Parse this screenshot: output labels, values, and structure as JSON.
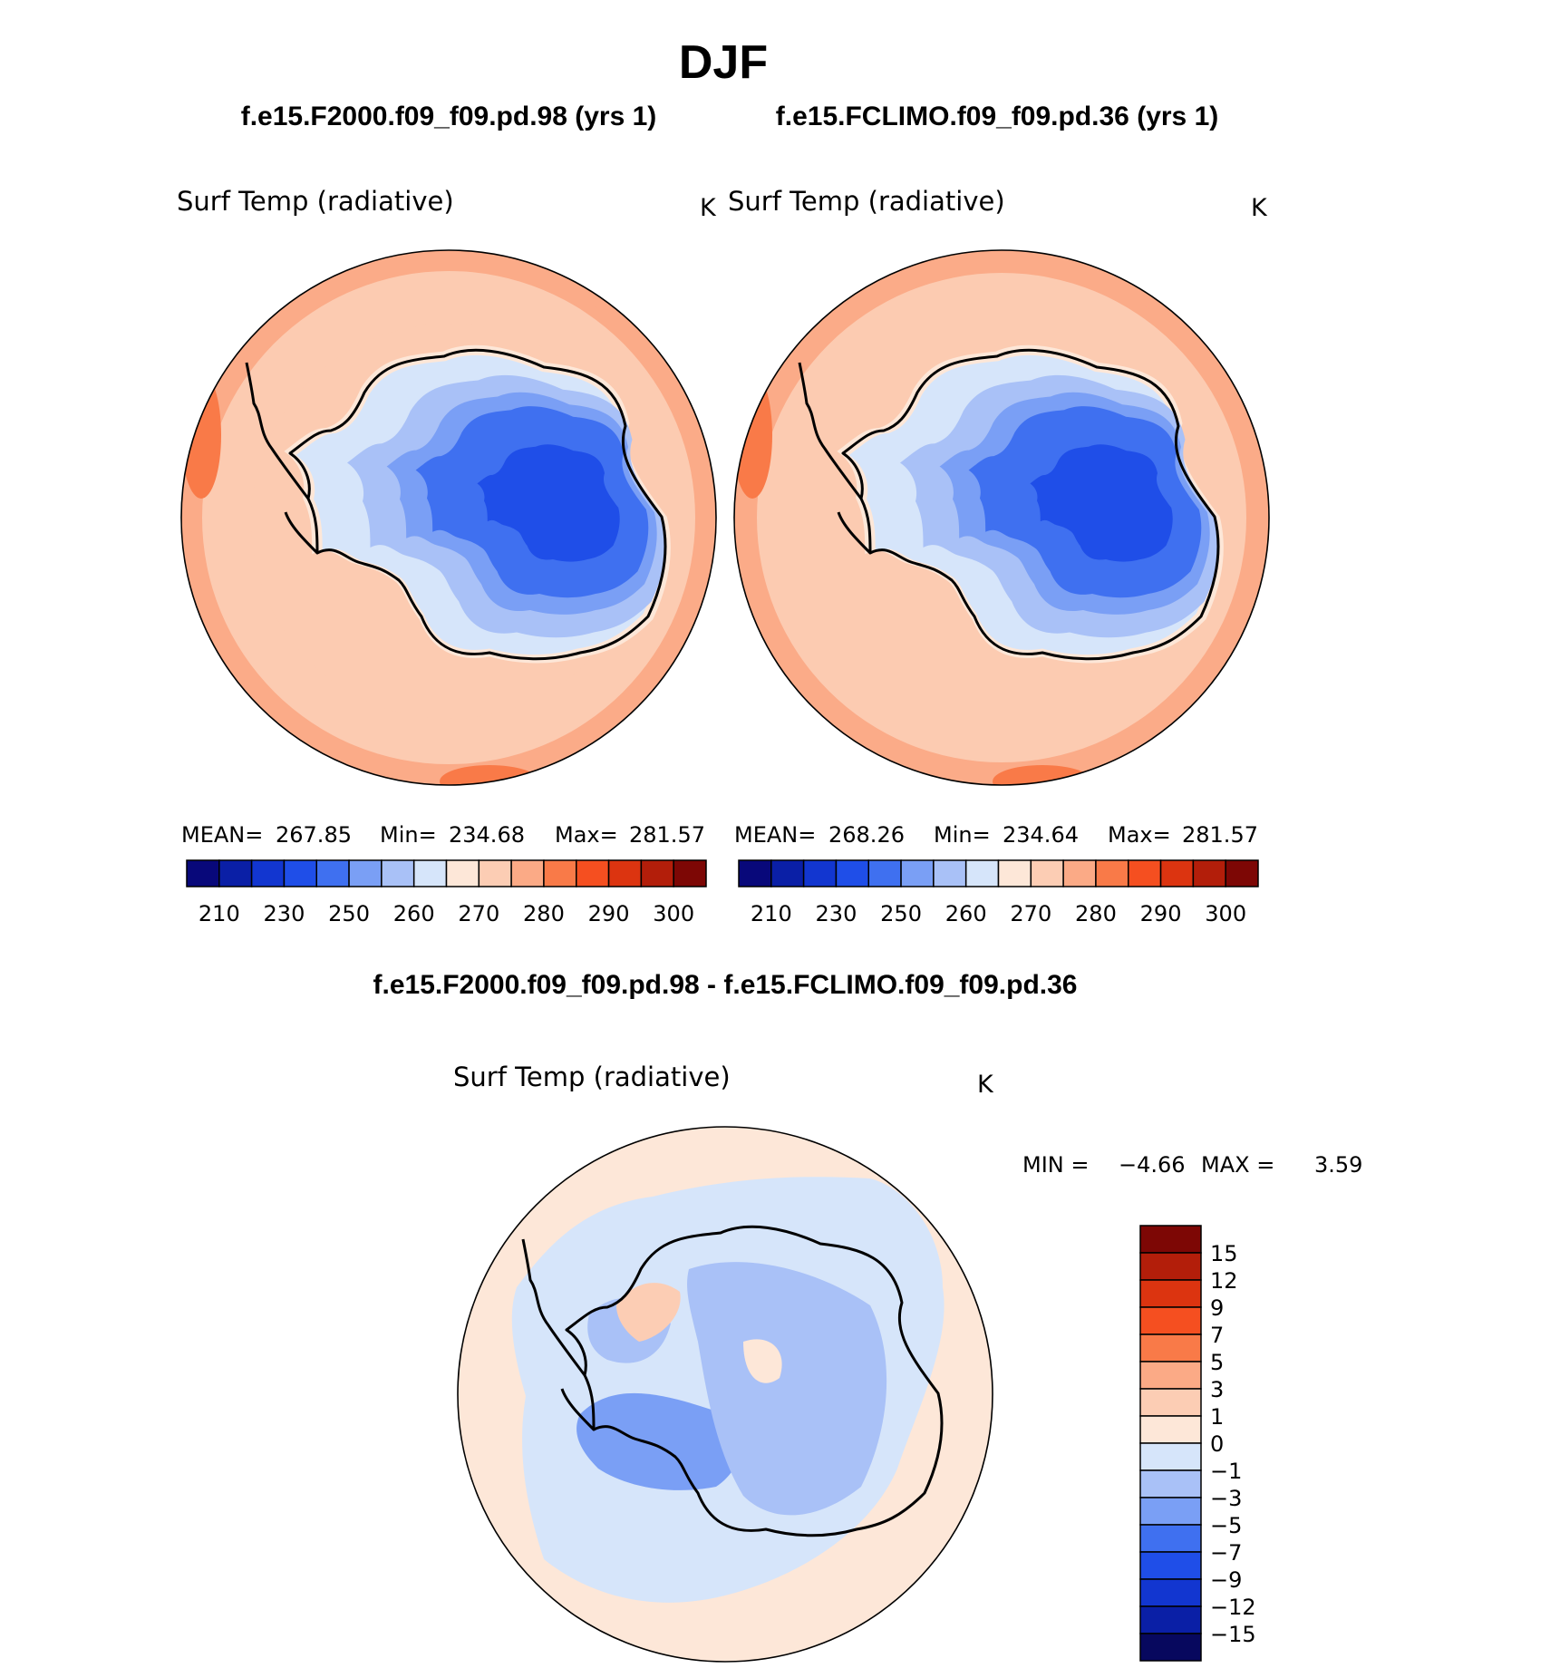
{
  "title": "DJF",
  "colors": {
    "abs_scale": [
      "#08087a",
      "#0a1fa6",
      "#1236d0",
      "#1f4ee8",
      "#3f70f0",
      "#7a9ff5",
      "#a9c1f7",
      "#d6e5fa",
      "#fde7d8",
      "#fccdb4",
      "#fbaa86",
      "#f97a48",
      "#f54f20",
      "#dc3410",
      "#b31e0a",
      "#7d0705"
    ],
    "diff_scale": [
      "#07085e",
      "#0a1fa6",
      "#1236d0",
      "#1f4ee8",
      "#3f70f0",
      "#7a9ff5",
      "#a9c1f7",
      "#d6e5fa",
      "#fde7d8",
      "#fccdb4",
      "#fbaa86",
      "#f97a48",
      "#f54f20",
      "#dc3410",
      "#b31e0a",
      "#7d0705"
    ]
  },
  "panels": [
    {
      "id": "left",
      "case_title": "f.e15.F2000.f09_f09.pd.98 (yrs 1)",
      "variable": "Surf Temp (radiative)",
      "units": "K",
      "stats": {
        "mean_label": "MEAN=",
        "mean": "267.85",
        "min_label": "Min=",
        "min": "234.68",
        "max_label": "Max=",
        "max": "281.57"
      },
      "colorbar_ticks": [
        "210",
        "230",
        "250",
        "260",
        "270",
        "280",
        "290",
        "300"
      ]
    },
    {
      "id": "right",
      "case_title": "f.e15.FCLIMO.f09_f09.pd.36 (yrs 1)",
      "variable": "Surf Temp (radiative)",
      "units": "K",
      "stats": {
        "mean_label": "MEAN=",
        "mean": "268.26",
        "min_label": "Min=",
        "min": "234.64",
        "max_label": "Max=",
        "max": "281.57"
      },
      "colorbar_ticks": [
        "210",
        "230",
        "250",
        "260",
        "270",
        "280",
        "290",
        "300"
      ]
    }
  ],
  "difference": {
    "title": "f.e15.F2000.f09_f09.pd.98 - f.e15.FCLIMO.f09_f09.pd.36",
    "variable": "Surf Temp (radiative)",
    "units": "K",
    "min_label": "MIN =",
    "min": "−4.66",
    "max_label": "MAX =",
    "max": "3.59",
    "colorbar_ticks": [
      "15",
      "12",
      "9",
      "7",
      "5",
      "3",
      "1",
      "0",
      "−1",
      "−3",
      "−5",
      "−7",
      "−9",
      "−12",
      "−15"
    ]
  }
}
